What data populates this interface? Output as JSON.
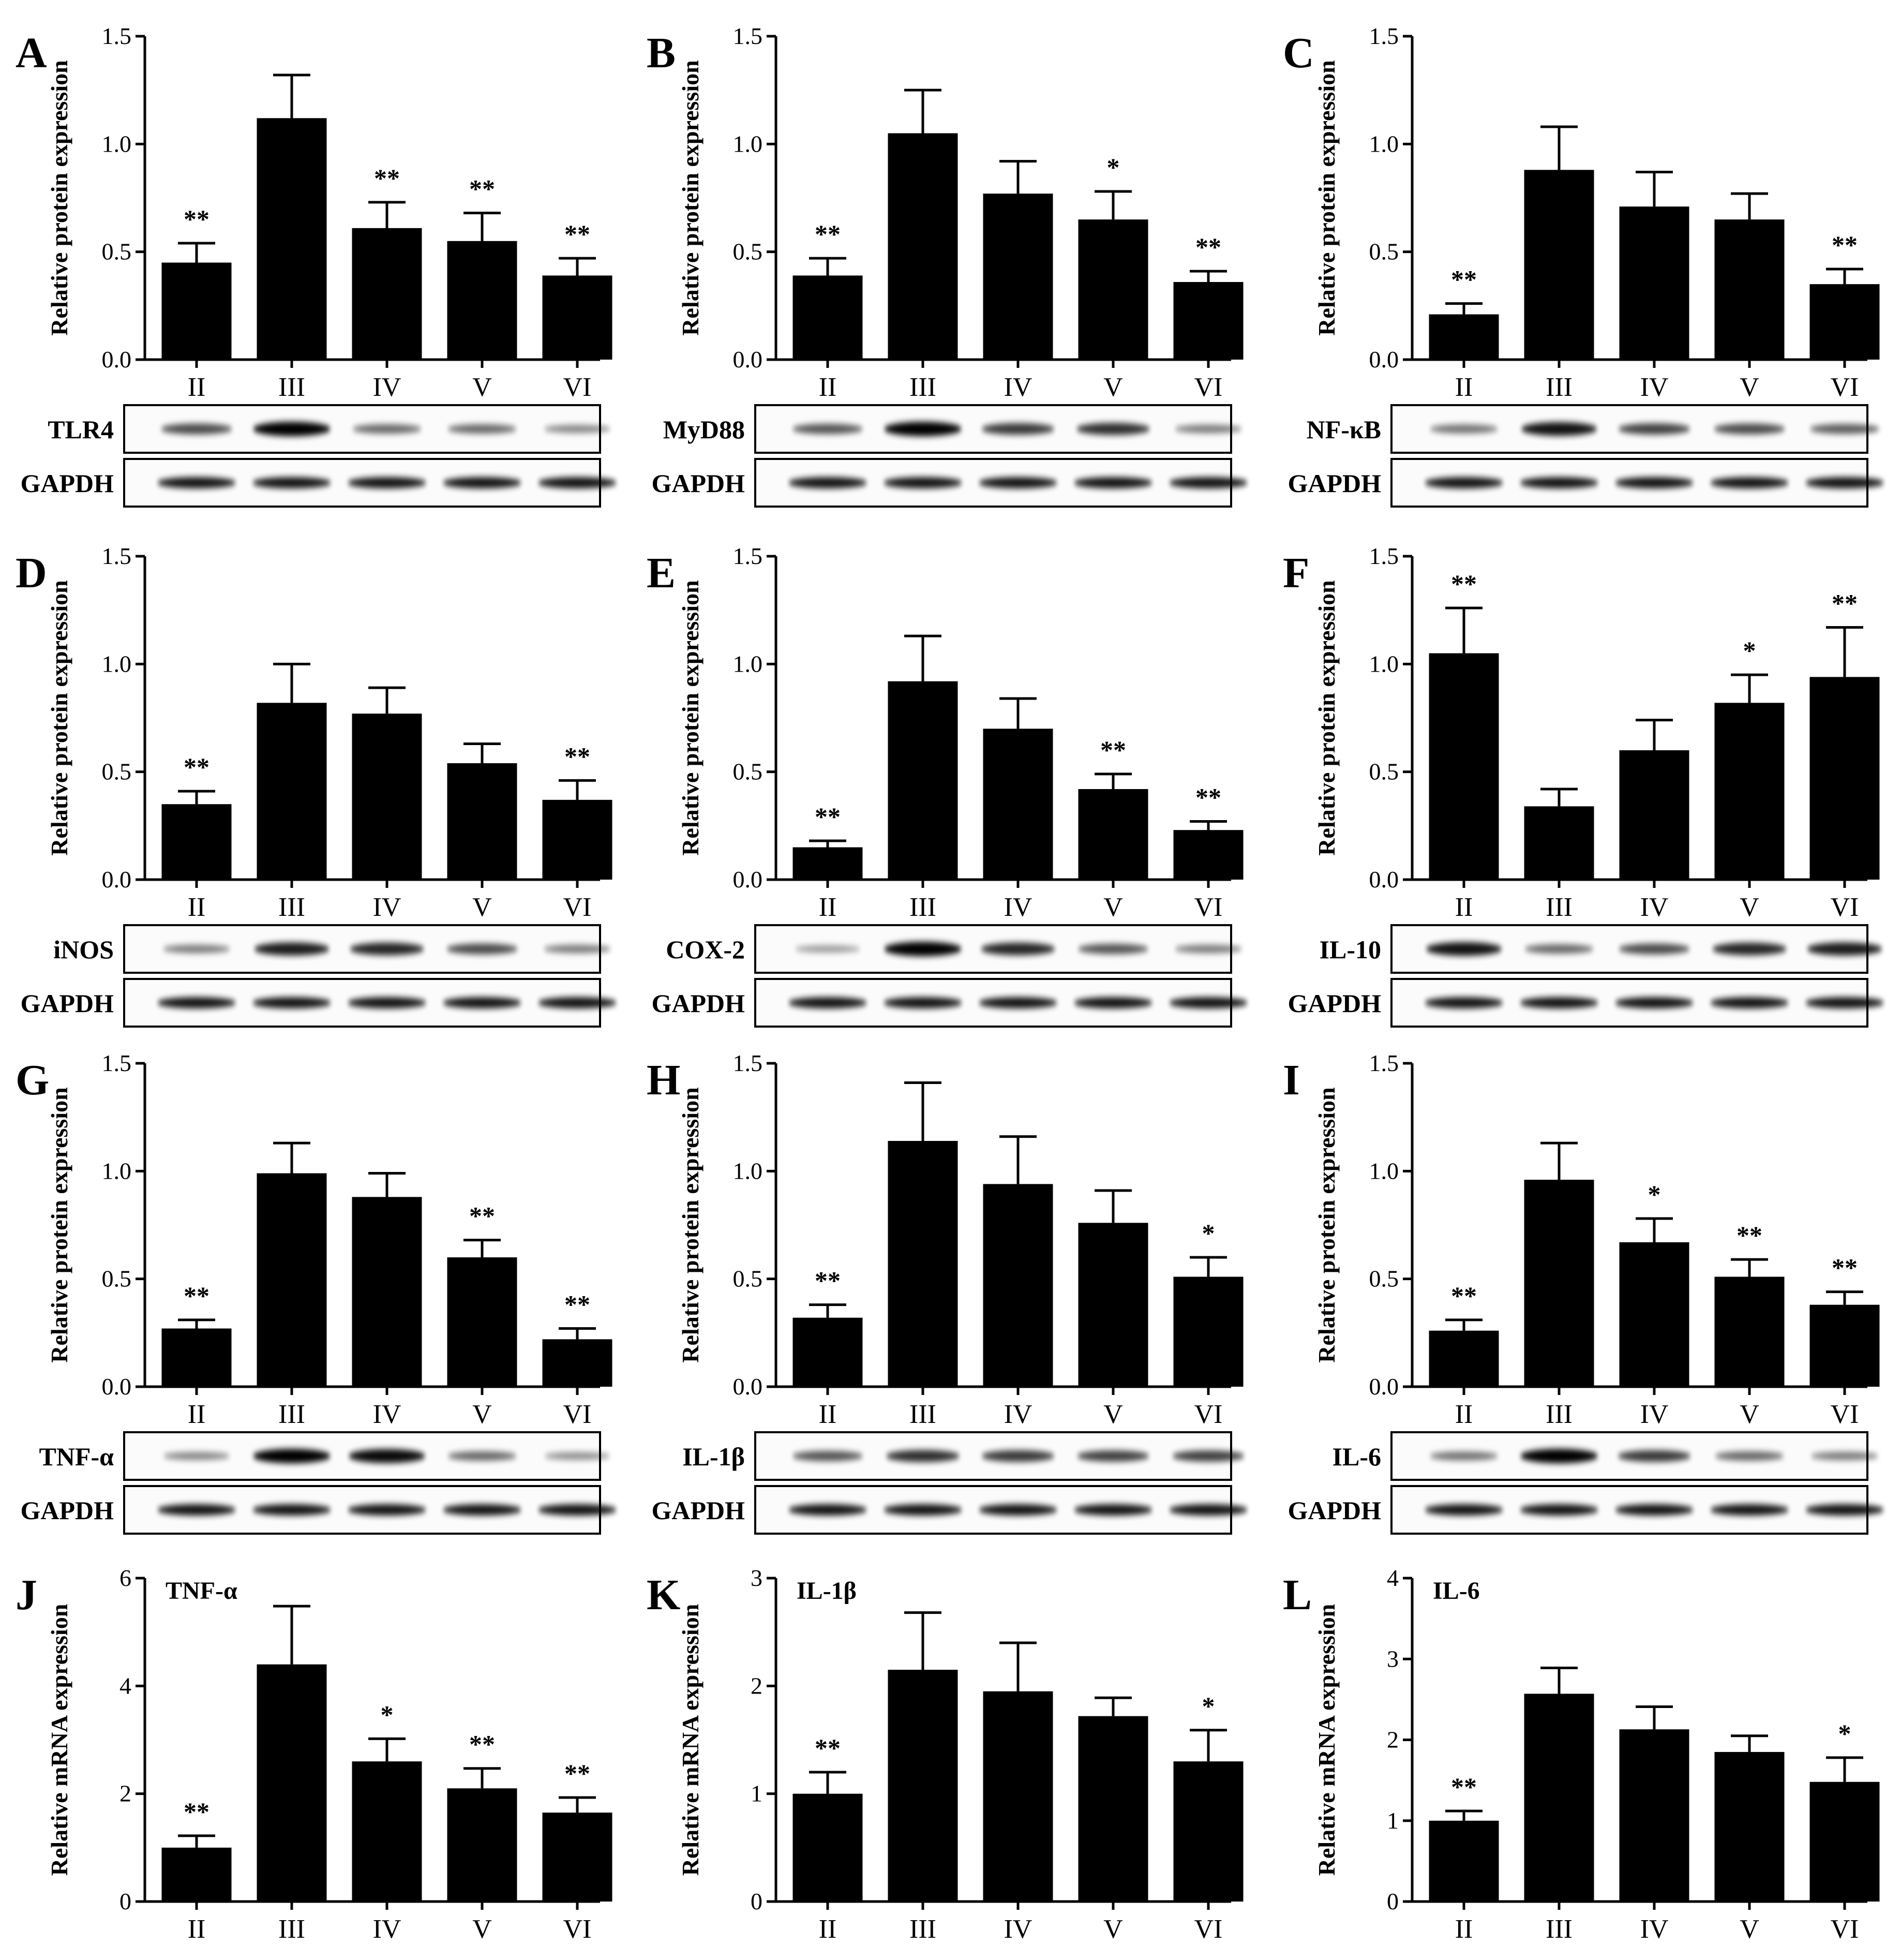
{
  "figure": {
    "categories": [
      "II",
      "III",
      "IV",
      "V",
      "VI"
    ],
    "loading_control": "GAPDH"
  },
  "chart_data": [
    {
      "id": "A",
      "type": "bar",
      "ylabel": "Relative protein expression",
      "ylim": [
        0,
        1.5
      ],
      "yticks": [
        "0.0",
        "0.5",
        "1.0",
        "1.5"
      ],
      "categories": [
        "II",
        "III",
        "IV",
        "V",
        "VI"
      ],
      "values": [
        0.45,
        1.12,
        0.61,
        0.55,
        0.39
      ],
      "errors": [
        0.09,
        0.2,
        0.12,
        0.13,
        0.08
      ],
      "significance": [
        "**",
        "",
        "**",
        "**",
        "**"
      ],
      "blot": "TLR4",
      "bands": [
        0.6,
        1.0,
        0.45,
        0.45,
        0.3
      ]
    },
    {
      "id": "B",
      "type": "bar",
      "ylabel": "Relative protein expression",
      "ylim": [
        0,
        1.5
      ],
      "yticks": [
        "0.0",
        "0.5",
        "1.0",
        "1.5"
      ],
      "categories": [
        "II",
        "III",
        "IV",
        "V",
        "VI"
      ],
      "values": [
        0.39,
        1.05,
        0.77,
        0.65,
        0.36
      ],
      "errors": [
        0.08,
        0.2,
        0.15,
        0.13,
        0.05
      ],
      "significance": [
        "**",
        "",
        "",
        "*",
        "**"
      ],
      "blot": "MyD88",
      "bands": [
        0.55,
        1.0,
        0.7,
        0.75,
        0.35
      ]
    },
    {
      "id": "C",
      "type": "bar",
      "ylabel": "Relative protein expression",
      "ylim": [
        0,
        1.5
      ],
      "yticks": [
        "0.0",
        "0.5",
        "1.0",
        "1.5"
      ],
      "categories": [
        "II",
        "III",
        "IV",
        "V",
        "VI"
      ],
      "values": [
        0.21,
        0.88,
        0.71,
        0.65,
        0.35
      ],
      "errors": [
        0.05,
        0.2,
        0.16,
        0.12,
        0.07
      ],
      "significance": [
        "**",
        "",
        "",
        "",
        "**"
      ],
      "blot": "NF-κB",
      "bands": [
        0.4,
        0.9,
        0.65,
        0.6,
        0.5
      ]
    },
    {
      "id": "D",
      "type": "bar",
      "ylabel": "Relative protein expression",
      "ylim": [
        0,
        1.5
      ],
      "yticks": [
        "0.0",
        "0.5",
        "1.0",
        "1.5"
      ],
      "categories": [
        "II",
        "III",
        "IV",
        "V",
        "VI"
      ],
      "values": [
        0.35,
        0.82,
        0.77,
        0.54,
        0.37
      ],
      "errors": [
        0.06,
        0.18,
        0.12,
        0.09,
        0.09
      ],
      "significance": [
        "**",
        "",
        "",
        "",
        "**"
      ],
      "blot": "iNOS",
      "bands": [
        0.35,
        0.85,
        0.8,
        0.6,
        0.35
      ]
    },
    {
      "id": "E",
      "type": "bar",
      "ylabel": "Relative protein expression",
      "ylim": [
        0,
        1.5
      ],
      "yticks": [
        "0.0",
        "0.5",
        "1.0",
        "1.5"
      ],
      "categories": [
        "II",
        "III",
        "IV",
        "V",
        "VI"
      ],
      "values": [
        0.15,
        0.92,
        0.7,
        0.42,
        0.23
      ],
      "errors": [
        0.03,
        0.21,
        0.14,
        0.07,
        0.04
      ],
      "significance": [
        "**",
        "",
        "",
        "**",
        "**"
      ],
      "blot": "COX-2",
      "bands": [
        0.2,
        1.0,
        0.8,
        0.55,
        0.35
      ]
    },
    {
      "id": "F",
      "type": "bar",
      "ylabel": "Relative protein expression",
      "ylim": [
        0,
        1.5
      ],
      "yticks": [
        "0.0",
        "0.5",
        "1.0",
        "1.5"
      ],
      "categories": [
        "II",
        "III",
        "IV",
        "V",
        "VI"
      ],
      "values": [
        1.05,
        0.34,
        0.6,
        0.82,
        0.94
      ],
      "errors": [
        0.21,
        0.08,
        0.14,
        0.13,
        0.23
      ],
      "significance": [
        "**",
        "",
        "",
        "*",
        "**"
      ],
      "blot": "IL-10",
      "bands": [
        0.9,
        0.45,
        0.6,
        0.8,
        0.85
      ]
    },
    {
      "id": "G",
      "type": "bar",
      "ylabel": "Relative protein expression",
      "ylim": [
        0,
        1.5
      ],
      "yticks": [
        "0.0",
        "0.5",
        "1.0",
        "1.5"
      ],
      "categories": [
        "II",
        "III",
        "IV",
        "V",
        "VI"
      ],
      "values": [
        0.27,
        0.99,
        0.88,
        0.6,
        0.22
      ],
      "errors": [
        0.04,
        0.14,
        0.11,
        0.08,
        0.05
      ],
      "significance": [
        "**",
        "",
        "",
        "**",
        "**"
      ],
      "blot": "TNF-α",
      "bands": [
        0.3,
        1.0,
        0.95,
        0.45,
        0.25
      ]
    },
    {
      "id": "H",
      "type": "bar",
      "ylabel": "Relative protein expression",
      "ylim": [
        0,
        1.5
      ],
      "yticks": [
        "0.0",
        "0.5",
        "1.0",
        "1.5"
      ],
      "categories": [
        "II",
        "III",
        "IV",
        "V",
        "VI"
      ],
      "values": [
        0.32,
        1.14,
        0.94,
        0.76,
        0.51
      ],
      "errors": [
        0.06,
        0.27,
        0.22,
        0.15,
        0.09
      ],
      "significance": [
        "**",
        "",
        "",
        "",
        "*"
      ],
      "blot": "IL-1β",
      "bands": [
        0.55,
        0.75,
        0.7,
        0.65,
        0.65
      ]
    },
    {
      "id": "I",
      "type": "bar",
      "ylabel": "Relative protein expression",
      "ylim": [
        0,
        1.5
      ],
      "yticks": [
        "0.0",
        "0.5",
        "1.0",
        "1.5"
      ],
      "categories": [
        "II",
        "III",
        "IV",
        "V",
        "VI"
      ],
      "values": [
        0.26,
        0.96,
        0.67,
        0.51,
        0.38
      ],
      "errors": [
        0.05,
        0.17,
        0.11,
        0.08,
        0.06
      ],
      "significance": [
        "**",
        "",
        "*",
        "**",
        "**"
      ],
      "blot": "IL-6",
      "bands": [
        0.4,
        1.0,
        0.7,
        0.45,
        0.35
      ]
    },
    {
      "id": "J",
      "type": "bar",
      "title": "TNF-α",
      "ylabel": "Relative mRNA expression",
      "ylim": [
        0,
        6
      ],
      "yticks": [
        "0",
        "2",
        "4",
        "6"
      ],
      "categories": [
        "II",
        "III",
        "IV",
        "V",
        "VI"
      ],
      "values": [
        1.0,
        4.4,
        2.6,
        2.1,
        1.65
      ],
      "errors": [
        0.22,
        1.08,
        0.42,
        0.37,
        0.28
      ],
      "significance": [
        "**",
        "",
        "*",
        "**",
        "**"
      ]
    },
    {
      "id": "K",
      "type": "bar",
      "title": "IL-1β",
      "ylabel": "Relative mRNA expression",
      "ylim": [
        0,
        3
      ],
      "yticks": [
        "0",
        "1",
        "2",
        "3"
      ],
      "categories": [
        "II",
        "III",
        "IV",
        "V",
        "VI"
      ],
      "values": [
        1.0,
        2.15,
        1.95,
        1.72,
        1.3
      ],
      "errors": [
        0.2,
        0.53,
        0.45,
        0.17,
        0.29
      ],
      "significance": [
        "**",
        "",
        "",
        "",
        "*"
      ]
    },
    {
      "id": "L",
      "type": "bar",
      "title": "IL-6",
      "ylabel": "Relative mRNA expression",
      "ylim": [
        0,
        4
      ],
      "yticks": [
        "0",
        "1",
        "2",
        "3",
        "4"
      ],
      "categories": [
        "II",
        "III",
        "IV",
        "V",
        "VI"
      ],
      "values": [
        1.0,
        2.57,
        2.13,
        1.85,
        1.48
      ],
      "errors": [
        0.12,
        0.32,
        0.28,
        0.2,
        0.3
      ],
      "significance": [
        "**",
        "",
        "",
        "",
        "*"
      ]
    }
  ]
}
